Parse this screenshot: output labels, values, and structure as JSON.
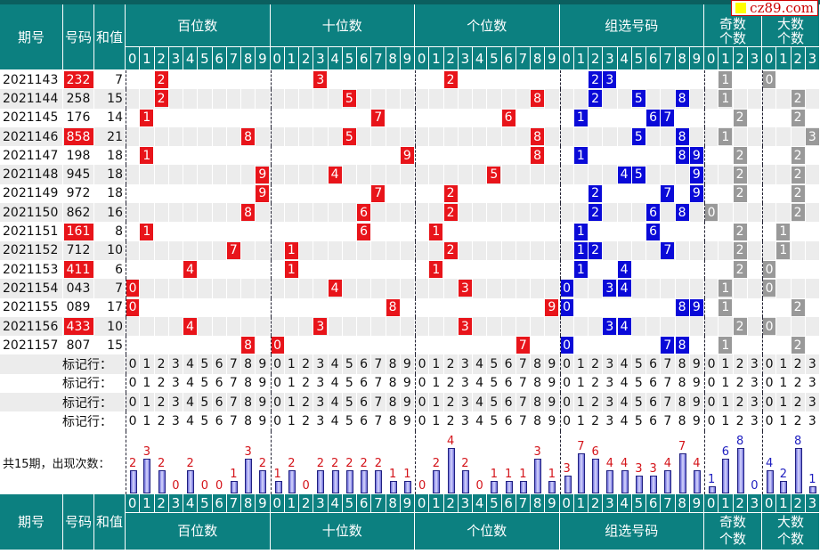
{
  "headers": {
    "period": "期号",
    "number": "号码",
    "sum": "和值",
    "hundreds": "百位数",
    "tens": "十位数",
    "units": "个位数",
    "group": "组选号码",
    "odd": "奇数个数",
    "big": "大数个数",
    "odd_l1": "奇数",
    "odd_l2": "个数",
    "big_l1": "大数",
    "big_l2": "个数"
  },
  "digits": [
    "0",
    "1",
    "2",
    "3",
    "4",
    "5",
    "6",
    "7",
    "8",
    "9"
  ],
  "rows": [
    {
      "period": "2021143",
      "number": "232",
      "sum": "7",
      "hl": true
    },
    {
      "period": "2021144",
      "number": "258",
      "sum": "15",
      "hl": false
    },
    {
      "period": "2021145",
      "number": "176",
      "sum": "14",
      "hl": false
    },
    {
      "period": "2021146",
      "number": "858",
      "sum": "21",
      "hl": true
    },
    {
      "period": "2021147",
      "number": "198",
      "sum": "18",
      "hl": false
    },
    {
      "period": "2021148",
      "number": "945",
      "sum": "18",
      "hl": false
    },
    {
      "period": "2021149",
      "number": "972",
      "sum": "18",
      "hl": false
    },
    {
      "period": "2021150",
      "number": "862",
      "sum": "16",
      "hl": false
    },
    {
      "period": "2021151",
      "number": "161",
      "sum": "8",
      "hl": true
    },
    {
      "period": "2021152",
      "number": "712",
      "sum": "10",
      "hl": false
    },
    {
      "period": "2021153",
      "number": "411",
      "sum": "6",
      "hl": true
    },
    {
      "period": "2021154",
      "number": "043",
      "sum": "7",
      "hl": false
    },
    {
      "period": "2021155",
      "number": "089",
      "sum": "17",
      "hl": false
    },
    {
      "period": "2021156",
      "number": "433",
      "sum": "10",
      "hl": true
    },
    {
      "period": "2021157",
      "number": "807",
      "sum": "15",
      "hl": false
    }
  ],
  "marker_label": "标记行：",
  "summary_label": "共15期，出现次数：",
  "counts": {
    "hundreds": [
      2,
      3,
      2,
      0,
      2,
      0,
      0,
      1,
      3,
      2
    ],
    "tens": [
      1,
      2,
      0,
      2,
      2,
      2,
      2,
      2,
      1,
      1
    ],
    "units": [
      0,
      2,
      4,
      2,
      0,
      1,
      1,
      1,
      3,
      1
    ],
    "group": [
      3,
      7,
      6,
      4,
      4,
      3,
      3,
      4,
      7,
      4
    ],
    "odd": [
      1,
      6,
      8,
      0
    ],
    "big": [
      4,
      2,
      8,
      1
    ]
  },
  "watermark": "cz89.com",
  "colors": {
    "header": "#0c8080",
    "hit_position": "#e8141a",
    "hit_group": "#0a0ad8",
    "hit_count": "#999999"
  }
}
